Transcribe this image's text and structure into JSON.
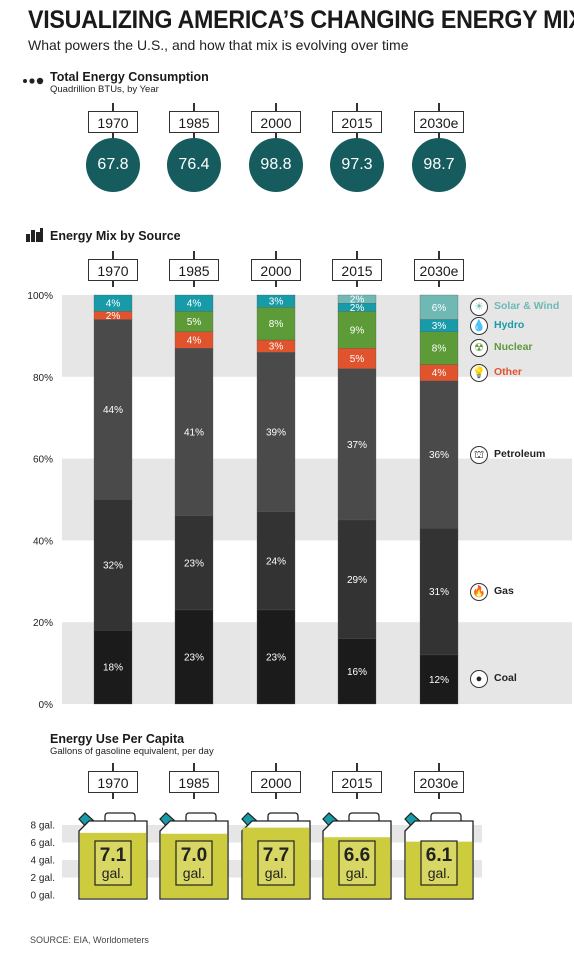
{
  "header": {
    "title": "VISUALIZING AMERICA’S CHANGING ENERGY MIX",
    "subtitle": "What powers the U.S., and how that mix is evolving over time"
  },
  "consumption": {
    "title": "Total Energy Consumption",
    "subtitle": "Quadrillion BTUs, by Year",
    "years": [
      "1970",
      "1985",
      "2000",
      "2015",
      "2030e"
    ],
    "values": [
      "67.8",
      "76.4",
      "98.8",
      "97.3",
      "98.7"
    ]
  },
  "mix": {
    "title": "Energy Mix by Source",
    "years": [
      "1970",
      "1985",
      "2000",
      "2015",
      "2030e"
    ],
    "y_ticks": [
      "100%",
      "80%",
      "60%",
      "40%",
      "20%",
      "0%"
    ]
  },
  "per_capita": {
    "title": "Energy Use Per Capita",
    "subtitle": "Gallons of gasoline equivalent, per day",
    "years": [
      "1970",
      "1985",
      "2000",
      "2015",
      "2030e"
    ],
    "values": [
      "7.1",
      "7.0",
      "7.7",
      "6.6",
      "6.1"
    ],
    "unit": "gal.",
    "y_ticks": [
      "8 gal.",
      "6 gal.",
      "4 gal.",
      "2 gal.",
      "0 gal."
    ]
  },
  "source": "SOURCE: EIA, Worldometers",
  "colors": {
    "circle": "#165c5f",
    "coal": "#1c1b1b",
    "gas": "#333333",
    "petroleum": "#4a4a4a",
    "other": "#e0532c",
    "nuclear": "#5d9a38",
    "hydro": "#189ba9",
    "solar_wind": "#6fb8b3",
    "can_fill": "#cdcc3e",
    "can_body": "#d9d763"
  },
  "chart_data": [
    {
      "type": "bar",
      "stacked": true,
      "title": "Energy Mix by Source",
      "categories": [
        "1970",
        "1985",
        "2000",
        "2015",
        "2030e"
      ],
      "ylim": [
        0,
        100
      ],
      "series": [
        {
          "name": "Coal",
          "values": [
            18,
            23,
            23,
            16,
            12
          ],
          "labels": [
            "18%",
            "23%",
            "23%",
            "16%",
            "12%"
          ]
        },
        {
          "name": "Gas",
          "values": [
            32,
            23,
            24,
            29,
            31
          ],
          "labels": [
            "32%",
            "23%",
            "24%",
            "29%",
            "31%"
          ]
        },
        {
          "name": "Petroleum",
          "values": [
            44,
            41,
            39,
            37,
            36
          ],
          "labels": [
            "44%",
            "41%",
            "39%",
            "37%",
            "36%"
          ]
        },
        {
          "name": "Other",
          "values": [
            2,
            4,
            3,
            5,
            4
          ],
          "labels": [
            "2%",
            "4%",
            "3%",
            "5%",
            "4%"
          ]
        },
        {
          "name": "Nuclear",
          "values": [
            0,
            5,
            8,
            9,
            8
          ],
          "labels": [
            "",
            "5%",
            "8%",
            "9%",
            "8%"
          ]
        },
        {
          "name": "Hydro",
          "values": [
            4,
            4,
            3,
            2,
            3
          ],
          "labels": [
            "4%",
            "4%",
            "3%",
            "2%",
            "3%"
          ]
        },
        {
          "name": "Solar & Wind",
          "values": [
            0,
            0,
            0,
            2,
            6
          ],
          "labels": [
            "",
            "",
            "",
            "2%",
            "6%"
          ]
        }
      ],
      "legend": [
        {
          "name": "Solar & Wind",
          "icon": "sun-wind-icon",
          "glyph": "☀"
        },
        {
          "name": "Hydro",
          "icon": "water-drop-icon",
          "glyph": "💧"
        },
        {
          "name": "Nuclear",
          "icon": "radiation-icon",
          "glyph": "☢"
        },
        {
          "name": "Other",
          "icon": "lightbulb-icon",
          "glyph": "💡"
        },
        {
          "name": "Petroleum",
          "icon": "oil-rig-icon",
          "glyph": "⛫"
        },
        {
          "name": "Gas",
          "icon": "flame-icon",
          "glyph": "🔥"
        },
        {
          "name": "Coal",
          "icon": "coal-icon",
          "glyph": "●"
        }
      ],
      "legend_placement": "right",
      "grid": "alternating bands"
    },
    {
      "type": "bar",
      "title": "Energy Use Per Capita",
      "categories": [
        "1970",
        "1985",
        "2000",
        "2015",
        "2030e"
      ],
      "values": [
        7.1,
        7.0,
        7.7,
        6.6,
        6.1
      ],
      "ylim": [
        0,
        8
      ]
    }
  ]
}
